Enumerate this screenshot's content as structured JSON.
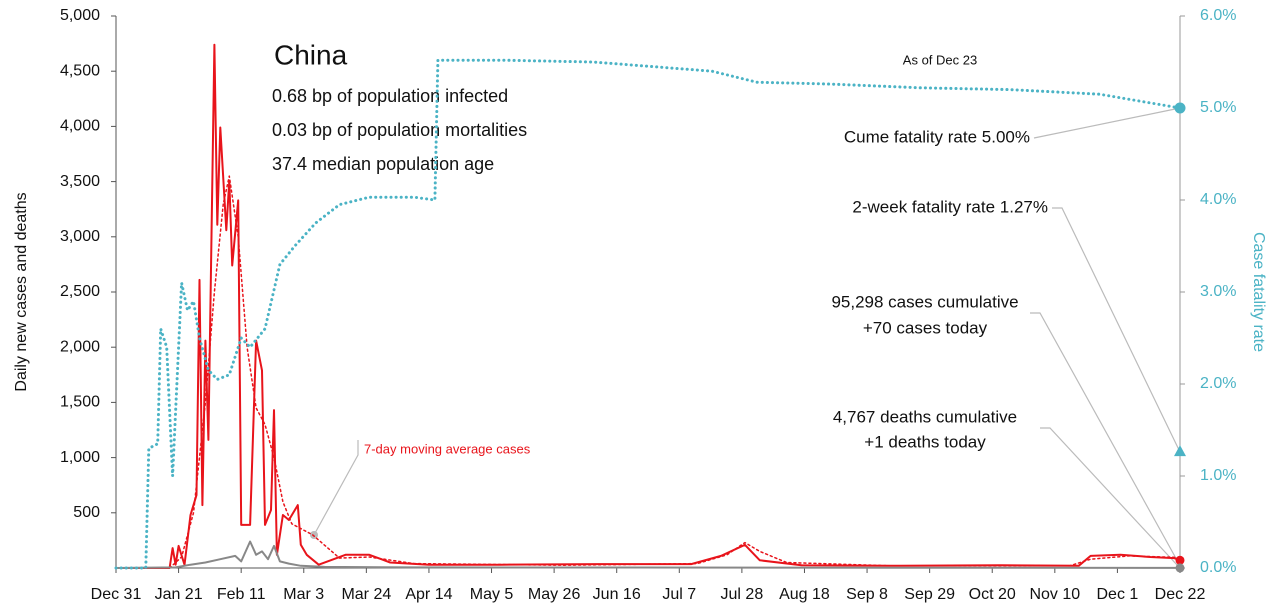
{
  "chart_data": {
    "type": "line",
    "title": "China",
    "subtitle_lines": [
      "0.68 bp of population infected",
      "0.03 bp of population mortalities",
      "37.4 median population age"
    ],
    "as_of": "As of Dec 23",
    "ylabel": "Daily new cases and deaths",
    "y2label": "Case fatality rate",
    "xlim": [
      0,
      357
    ],
    "xticks": [
      {
        "value": 0,
        "label": "Dec 31"
      },
      {
        "value": 21,
        "label": "Jan 21"
      },
      {
        "value": 42,
        "label": "Feb 11"
      },
      {
        "value": 63,
        "label": "Mar 3"
      },
      {
        "value": 84,
        "label": "Mar 24"
      },
      {
        "value": 105,
        "label": "Apr 14"
      },
      {
        "value": 126,
        "label": "May 5"
      },
      {
        "value": 147,
        "label": "May 26"
      },
      {
        "value": 168,
        "label": "Jun 16"
      },
      {
        "value": 189,
        "label": "Jul 7"
      },
      {
        "value": 210,
        "label": "Jul 28"
      },
      {
        "value": 231,
        "label": "Aug 18"
      },
      {
        "value": 252,
        "label": "Sep 8"
      },
      {
        "value": 273,
        "label": "Sep 29"
      },
      {
        "value": 294,
        "label": "Oct 20"
      },
      {
        "value": 315,
        "label": "Nov 10"
      },
      {
        "value": 336,
        "label": "Dec 1"
      },
      {
        "value": 357,
        "label": "Dec 22"
      }
    ],
    "ylim": [
      0,
      5000
    ],
    "yticks": [
      500,
      {
        "value": 1000,
        "label": "1,000"
      },
      {
        "value": 1500,
        "label": "1,500"
      },
      {
        "value": 2000,
        "label": "2,000"
      },
      {
        "value": 2500,
        "label": "2,500"
      },
      {
        "value": 3000,
        "label": "3,000"
      },
      {
        "value": 3500,
        "label": "3,500"
      },
      {
        "value": 4000,
        "label": "4,000"
      },
      {
        "value": 4500,
        "label": "4,500"
      },
      {
        "value": 5000,
        "label": "5,000"
      }
    ],
    "y2lim": [
      0,
      6
    ],
    "y2ticks": [
      {
        "value": 0,
        "label": "0.0%"
      },
      {
        "value": 1,
        "label": "1.0%"
      },
      {
        "value": 2,
        "label": "2.0%"
      },
      {
        "value": 3,
        "label": "3.0%"
      },
      {
        "value": 4,
        "label": "4.0%"
      },
      {
        "value": 5,
        "label": "5.0%"
      },
      {
        "value": 6,
        "label": "6.0%"
      }
    ],
    "series": [
      {
        "color": "#e8141b",
        "style": "solid",
        "x": [
          0,
          18,
          19,
          20,
          21,
          23,
          25,
          27,
          28,
          29,
          30,
          31,
          33,
          34,
          35,
          37,
          38,
          39,
          41,
          42,
          45,
          47,
          49,
          50,
          52,
          53,
          54,
          56,
          58,
          61,
          62,
          64,
          68,
          72,
          77,
          85,
          92,
          105,
          129,
          162,
          193,
          203,
          211,
          216,
          230,
          263,
          297,
          323,
          327,
          337,
          347,
          355,
          357
        ],
        "values": [
          0,
          0,
          180,
          30,
          200,
          30,
          480,
          660,
          2610,
          570,
          2060,
          1160,
          4740,
          3110,
          3990,
          3060,
          3510,
          2740,
          3330,
          390,
          390,
          2060,
          1790,
          390,
          525,
          1430,
          120,
          480,
          435,
          570,
          210,
          120,
          30,
          70,
          120,
          120,
          50,
          30,
          30,
          35,
          35,
          110,
          210,
          70,
          25,
          20,
          25,
          20,
          110,
          120,
          100,
          90,
          70
        ]
      },
      {
        "name": "7-day moving average cases",
        "color": "#e8141b",
        "style": "dotted",
        "x": [
          18,
          22,
          26,
          30,
          33,
          36,
          38,
          41,
          44,
          47,
          50,
          53,
          56,
          59,
          66,
          75,
          85,
          100,
          150,
          195,
          205,
          211,
          216,
          225,
          260,
          320,
          327,
          340,
          357
        ],
        "values": [
          0,
          100,
          500,
          1500,
          2500,
          3300,
          3550,
          3000,
          2000,
          1450,
          1300,
          1000,
          600,
          400,
          300,
          90,
          100,
          40,
          25,
          40,
          120,
          230,
          150,
          50,
          20,
          20,
          80,
          110,
          95
        ]
      },
      {
        "color": "#888888",
        "style": "solid",
        "x": [
          0,
          20,
          25,
          30,
          35,
          40,
          42,
          45,
          47,
          49,
          51,
          53,
          55,
          58,
          62,
          70,
          100,
          357
        ],
        "values": [
          0,
          5,
          30,
          50,
          80,
          110,
          60,
          240,
          120,
          150,
          80,
          200,
          60,
          40,
          20,
          10,
          5,
          1
        ]
      },
      {
        "color": "#4bb3c5",
        "style": "dotted",
        "axis": "y2",
        "x": [
          0,
          10,
          11,
          14,
          15,
          17,
          19,
          22,
          24,
          26,
          28,
          31,
          34,
          38,
          42,
          45,
          50,
          55,
          60,
          67,
          75,
          85,
          100,
          107,
          108,
          130,
          160,
          180,
          200,
          215,
          240,
          270,
          300,
          330,
          357
        ],
        "values": [
          0,
          0,
          1.3,
          1.35,
          2.6,
          2.4,
          1.0,
          3.1,
          2.8,
          2.9,
          2.5,
          2.15,
          2.05,
          2.1,
          2.5,
          2.4,
          2.6,
          3.3,
          3.5,
          3.75,
          3.95,
          4.03,
          4.03,
          4.0,
          5.52,
          5.52,
          5.5,
          5.45,
          5.4,
          5.28,
          5.26,
          5.22,
          5.2,
          5.15,
          5.0
        ]
      }
    ],
    "two_week_fatality_rate": 1.27,
    "annotations": [
      "Cume fatality rate 5.00%",
      "2-week fatality rate 1.27%",
      "95,298 cases cumulative",
      "+70 cases today",
      "4,767 deaths cumulative",
      "+1 deaths today"
    ]
  }
}
